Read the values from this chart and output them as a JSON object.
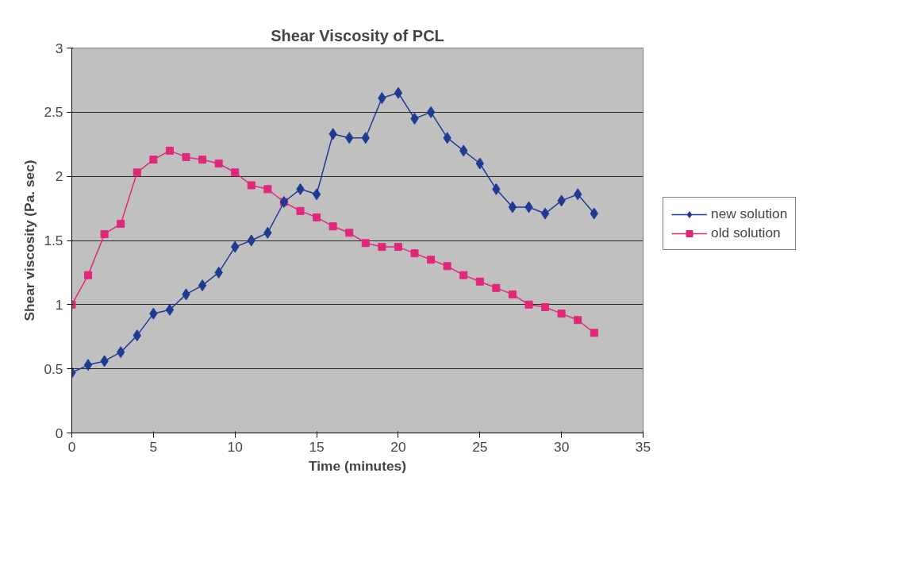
{
  "chart_data": {
    "type": "line",
    "title": "Shear Viscosity of PCL",
    "xlabel": "Time (minutes)",
    "ylabel": "Shear viscosity (Pa. sec)",
    "x": [
      0,
      1,
      2,
      3,
      4,
      5,
      6,
      7,
      8,
      9,
      10,
      11,
      12,
      13,
      14,
      15,
      16,
      17,
      18,
      19,
      20,
      21,
      22,
      23,
      24,
      25,
      26,
      27,
      28,
      29,
      30,
      31,
      32
    ],
    "series": [
      {
        "name": "new solution",
        "color": "#1f3a93",
        "marker": "diamond",
        "values": [
          0.47,
          0.53,
          0.56,
          0.63,
          0.76,
          0.93,
          0.96,
          1.08,
          1.15,
          1.25,
          1.45,
          1.5,
          1.56,
          1.8,
          1.9,
          1.86,
          2.33,
          2.3,
          2.3,
          2.61,
          2.65,
          2.45,
          2.5,
          2.3,
          2.2,
          2.1,
          1.9,
          1.76,
          1.76,
          1.71,
          1.81,
          1.86,
          1.71
        ]
      },
      {
        "name": "old solution",
        "color": "#e0287a",
        "marker": "square",
        "values": [
          1.0,
          1.23,
          1.55,
          1.63,
          2.03,
          2.13,
          2.2,
          2.15,
          2.13,
          2.1,
          2.03,
          1.93,
          1.9,
          1.8,
          1.73,
          1.68,
          1.61,
          1.56,
          1.48,
          1.45,
          1.45,
          1.4,
          1.35,
          1.3,
          1.23,
          1.18,
          1.13,
          1.08,
          1.0,
          0.98,
          0.93,
          0.88,
          0.78
        ]
      }
    ],
    "xlim": [
      0,
      35
    ],
    "xticks": [
      0,
      5,
      10,
      15,
      20,
      25,
      30,
      35
    ],
    "ylim": [
      0,
      3
    ],
    "yticks": [
      0,
      0.5,
      1,
      1.5,
      2,
      2.5,
      3
    ],
    "grid": "y",
    "legend": "right",
    "line_style": "solid"
  }
}
